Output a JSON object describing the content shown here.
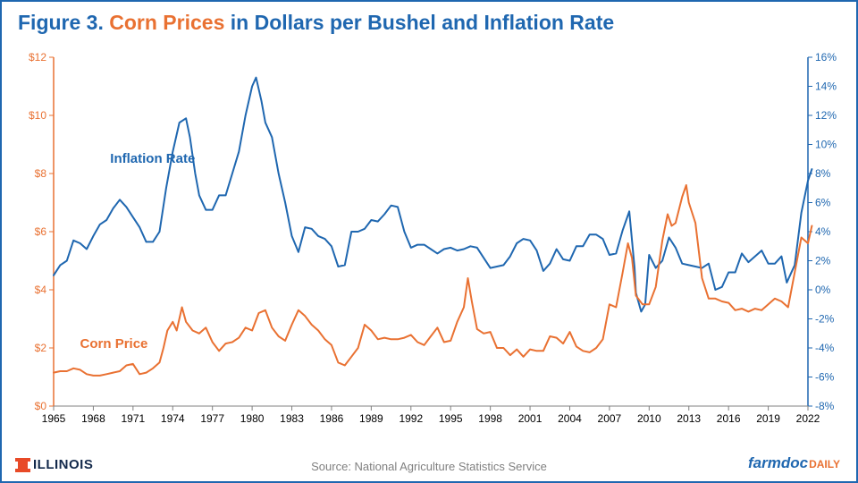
{
  "title": {
    "prefix": "Figure 3.",
    "corn": "Corn Prices",
    "mid": "in Dollars per Bushel and",
    "inflation": "Inflation Rate"
  },
  "footer": {
    "source": "Source: National Agriculture Statistics Service",
    "illinois": "ILLINOIS",
    "farmdoc": "farmdoc",
    "farmdoc_daily": "DAILY"
  },
  "chart": {
    "type": "line",
    "background_color": "#ffffff",
    "plot_border_color": "#808080",
    "plot_border_width": 1,
    "x": {
      "min": 1965,
      "max": 2022,
      "ticks": [
        1965,
        1968,
        1971,
        1974,
        1977,
        1980,
        1983,
        1986,
        1989,
        1992,
        1995,
        1998,
        2001,
        2004,
        2007,
        2010,
        2013,
        2016,
        2019,
        2022
      ],
      "tick_font_size": 12,
      "tick_color": "#000000",
      "baseline_color": "#808080"
    },
    "y_left": {
      "min": 0,
      "max": 12,
      "step": 2,
      "labels": [
        "$0",
        "$2",
        "$4",
        "$6",
        "$8",
        "$10",
        "$12"
      ],
      "axis_color": "#e97132",
      "tick_font_size": 12
    },
    "y_right": {
      "min": -8,
      "max": 16,
      "step": 2,
      "labels": [
        "-8%",
        "-6%",
        "-4%",
        "-2%",
        "0%",
        "2%",
        "4%",
        "6%",
        "8%",
        "10%",
        "12%",
        "14%",
        "16%"
      ],
      "axis_color": "#1f67b0",
      "tick_font_size": 12
    },
    "series": {
      "corn": {
        "label": "Corn Price",
        "label_pos": {
          "x": 0.035,
          "y": 0.8
        },
        "color": "#e97132",
        "line_width": 2,
        "axis": "left",
        "data": [
          [
            1965,
            1.15
          ],
          [
            1965.5,
            1.2
          ],
          [
            1966,
            1.2
          ],
          [
            1966.5,
            1.3
          ],
          [
            1967,
            1.25
          ],
          [
            1967.5,
            1.1
          ],
          [
            1968,
            1.05
          ],
          [
            1968.5,
            1.05
          ],
          [
            1969,
            1.1
          ],
          [
            1969.5,
            1.15
          ],
          [
            1970,
            1.2
          ],
          [
            1970.5,
            1.4
          ],
          [
            1971,
            1.45
          ],
          [
            1971.5,
            1.1
          ],
          [
            1972,
            1.15
          ],
          [
            1972.5,
            1.3
          ],
          [
            1973,
            1.5
          ],
          [
            1973.3,
            2.0
          ],
          [
            1973.6,
            2.6
          ],
          [
            1974,
            2.9
          ],
          [
            1974.3,
            2.6
          ],
          [
            1974.7,
            3.4
          ],
          [
            1975,
            2.9
          ],
          [
            1975.5,
            2.6
          ],
          [
            1976,
            2.5
          ],
          [
            1976.5,
            2.7
          ],
          [
            1977,
            2.2
          ],
          [
            1977.5,
            1.9
          ],
          [
            1978,
            2.15
          ],
          [
            1978.5,
            2.2
          ],
          [
            1979,
            2.35
          ],
          [
            1979.5,
            2.7
          ],
          [
            1980,
            2.6
          ],
          [
            1980.5,
            3.2
          ],
          [
            1981,
            3.3
          ],
          [
            1981.5,
            2.7
          ],
          [
            1982,
            2.4
          ],
          [
            1982.5,
            2.25
          ],
          [
            1983,
            2.8
          ],
          [
            1983.5,
            3.3
          ],
          [
            1984,
            3.1
          ],
          [
            1984.5,
            2.8
          ],
          [
            1985,
            2.6
          ],
          [
            1985.5,
            2.3
          ],
          [
            1986,
            2.1
          ],
          [
            1986.5,
            1.5
          ],
          [
            1987,
            1.4
          ],
          [
            1987.5,
            1.7
          ],
          [
            1988,
            2.0
          ],
          [
            1988.5,
            2.8
          ],
          [
            1989,
            2.6
          ],
          [
            1989.5,
            2.3
          ],
          [
            1990,
            2.35
          ],
          [
            1990.5,
            2.3
          ],
          [
            1991,
            2.3
          ],
          [
            1991.5,
            2.35
          ],
          [
            1992,
            2.45
          ],
          [
            1992.5,
            2.2
          ],
          [
            1993,
            2.1
          ],
          [
            1993.5,
            2.4
          ],
          [
            1994,
            2.7
          ],
          [
            1994.5,
            2.2
          ],
          [
            1995,
            2.25
          ],
          [
            1995.5,
            2.9
          ],
          [
            1996,
            3.4
          ],
          [
            1996.3,
            4.4
          ],
          [
            1996.6,
            3.6
          ],
          [
            1997,
            2.65
          ],
          [
            1997.5,
            2.5
          ],
          [
            1998,
            2.55
          ],
          [
            1998.5,
            2.0
          ],
          [
            1999,
            2.0
          ],
          [
            1999.5,
            1.75
          ],
          [
            2000,
            1.95
          ],
          [
            2000.5,
            1.7
          ],
          [
            2001,
            1.95
          ],
          [
            2001.5,
            1.9
          ],
          [
            2002,
            1.9
          ],
          [
            2002.5,
            2.4
          ],
          [
            2003,
            2.35
          ],
          [
            2003.5,
            2.15
          ],
          [
            2004,
            2.55
          ],
          [
            2004.5,
            2.05
          ],
          [
            2005,
            1.9
          ],
          [
            2005.5,
            1.85
          ],
          [
            2006,
            2.0
          ],
          [
            2006.5,
            2.3
          ],
          [
            2007,
            3.5
          ],
          [
            2007.5,
            3.4
          ],
          [
            2008,
            4.6
          ],
          [
            2008.4,
            5.6
          ],
          [
            2008.7,
            5.1
          ],
          [
            2009,
            3.8
          ],
          [
            2009.5,
            3.5
          ],
          [
            2010,
            3.5
          ],
          [
            2010.5,
            4.1
          ],
          [
            2011,
            5.7
          ],
          [
            2011.4,
            6.6
          ],
          [
            2011.7,
            6.2
          ],
          [
            2012,
            6.3
          ],
          [
            2012.5,
            7.2
          ],
          [
            2012.8,
            7.6
          ],
          [
            2013,
            7.0
          ],
          [
            2013.5,
            6.3
          ],
          [
            2014,
            4.4
          ],
          [
            2014.5,
            3.7
          ],
          [
            2015,
            3.7
          ],
          [
            2015.5,
            3.6
          ],
          [
            2016,
            3.55
          ],
          [
            2016.5,
            3.3
          ],
          [
            2017,
            3.35
          ],
          [
            2017.5,
            3.25
          ],
          [
            2018,
            3.35
          ],
          [
            2018.5,
            3.3
          ],
          [
            2019,
            3.5
          ],
          [
            2019.5,
            3.7
          ],
          [
            2020,
            3.6
          ],
          [
            2020.5,
            3.4
          ],
          [
            2021,
            4.6
          ],
          [
            2021.5,
            5.8
          ],
          [
            2022,
            5.6
          ],
          [
            2022.3,
            6.2
          ]
        ]
      },
      "inflation": {
        "label": "Inflation Rate",
        "label_pos": {
          "x": 0.075,
          "y": 0.27
        },
        "color": "#1f67b0",
        "line_width": 2,
        "axis": "right",
        "data": [
          [
            1965,
            1.0
          ],
          [
            1965.5,
            1.7
          ],
          [
            1966,
            2.0
          ],
          [
            1966.5,
            3.4
          ],
          [
            1967,
            3.2
          ],
          [
            1967.5,
            2.8
          ],
          [
            1968,
            3.7
          ],
          [
            1968.5,
            4.5
          ],
          [
            1969,
            4.8
          ],
          [
            1969.5,
            5.6
          ],
          [
            1970,
            6.2
          ],
          [
            1970.5,
            5.7
          ],
          [
            1971,
            5.0
          ],
          [
            1971.5,
            4.3
          ],
          [
            1972,
            3.3
          ],
          [
            1972.5,
            3.3
          ],
          [
            1973,
            4.0
          ],
          [
            1973.5,
            7.0
          ],
          [
            1974,
            9.5
          ],
          [
            1974.5,
            11.5
          ],
          [
            1975,
            11.8
          ],
          [
            1975.3,
            10.5
          ],
          [
            1975.7,
            8.0
          ],
          [
            1976,
            6.5
          ],
          [
            1976.5,
            5.5
          ],
          [
            1977,
            5.5
          ],
          [
            1977.5,
            6.5
          ],
          [
            1978,
            6.5
          ],
          [
            1978.5,
            8.0
          ],
          [
            1979,
            9.5
          ],
          [
            1979.5,
            12.0
          ],
          [
            1980,
            14.0
          ],
          [
            1980.3,
            14.6
          ],
          [
            1980.7,
            13.0
          ],
          [
            1981,
            11.5
          ],
          [
            1981.5,
            10.5
          ],
          [
            1982,
            8.0
          ],
          [
            1982.5,
            6.0
          ],
          [
            1983,
            3.7
          ],
          [
            1983.5,
            2.6
          ],
          [
            1984,
            4.3
          ],
          [
            1984.5,
            4.2
          ],
          [
            1985,
            3.7
          ],
          [
            1985.5,
            3.5
          ],
          [
            1986,
            3.0
          ],
          [
            1986.5,
            1.6
          ],
          [
            1987,
            1.7
          ],
          [
            1987.5,
            4.0
          ],
          [
            1988,
            4.0
          ],
          [
            1988.5,
            4.2
          ],
          [
            1989,
            4.8
          ],
          [
            1989.5,
            4.7
          ],
          [
            1990,
            5.2
          ],
          [
            1990.5,
            5.8
          ],
          [
            1991,
            5.7
          ],
          [
            1991.5,
            4.0
          ],
          [
            1992,
            2.9
          ],
          [
            1992.5,
            3.1
          ],
          [
            1993,
            3.1
          ],
          [
            1993.5,
            2.8
          ],
          [
            1994,
            2.5
          ],
          [
            1994.5,
            2.8
          ],
          [
            1995,
            2.9
          ],
          [
            1995.5,
            2.7
          ],
          [
            1996,
            2.8
          ],
          [
            1996.5,
            3.0
          ],
          [
            1997,
            2.9
          ],
          [
            1997.5,
            2.2
          ],
          [
            1998,
            1.5
          ],
          [
            1998.5,
            1.6
          ],
          [
            1999,
            1.7
          ],
          [
            1999.5,
            2.3
          ],
          [
            2000,
            3.2
          ],
          [
            2000.5,
            3.5
          ],
          [
            2001,
            3.4
          ],
          [
            2001.5,
            2.7
          ],
          [
            2002,
            1.3
          ],
          [
            2002.5,
            1.8
          ],
          [
            2003,
            2.8
          ],
          [
            2003.5,
            2.1
          ],
          [
            2004,
            2.0
          ],
          [
            2004.5,
            3.0
          ],
          [
            2005,
            3.0
          ],
          [
            2005.5,
            3.8
          ],
          [
            2006,
            3.8
          ],
          [
            2006.5,
            3.5
          ],
          [
            2007,
            2.4
          ],
          [
            2007.5,
            2.5
          ],
          [
            2008,
            4.1
          ],
          [
            2008.5,
            5.4
          ],
          [
            2008.9,
            1.5
          ],
          [
            2009,
            -0.2
          ],
          [
            2009.4,
            -1.5
          ],
          [
            2009.7,
            -1.0
          ],
          [
            2010,
            2.4
          ],
          [
            2010.5,
            1.5
          ],
          [
            2011,
            2.0
          ],
          [
            2011.5,
            3.6
          ],
          [
            2012,
            2.9
          ],
          [
            2012.5,
            1.8
          ],
          [
            2013,
            1.7
          ],
          [
            2013.5,
            1.6
          ],
          [
            2014,
            1.5
          ],
          [
            2014.5,
            1.8
          ],
          [
            2015,
            0.0
          ],
          [
            2015.5,
            0.2
          ],
          [
            2016,
            1.2
          ],
          [
            2016.5,
            1.2
          ],
          [
            2017,
            2.5
          ],
          [
            2017.5,
            1.9
          ],
          [
            2018,
            2.3
          ],
          [
            2018.5,
            2.7
          ],
          [
            2019,
            1.8
          ],
          [
            2019.5,
            1.8
          ],
          [
            2020,
            2.3
          ],
          [
            2020.4,
            0.5
          ],
          [
            2020.8,
            1.3
          ],
          [
            2021,
            1.7
          ],
          [
            2021.5,
            5.3
          ],
          [
            2022,
            7.5
          ],
          [
            2022.3,
            8.3
          ]
        ]
      }
    },
    "label_font_size": 15
  }
}
